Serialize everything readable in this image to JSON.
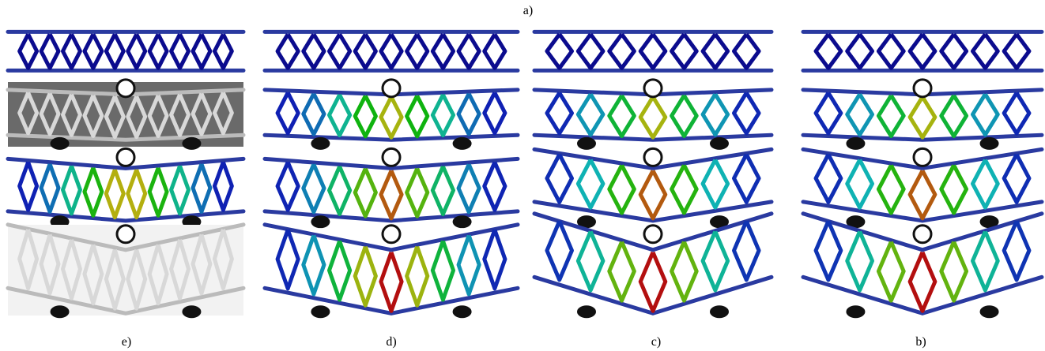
{
  "figure": {
    "labels": {
      "a": "a)",
      "e": "e)",
      "d": "d)",
      "c": "c)",
      "b": "b)"
    }
  }
}
